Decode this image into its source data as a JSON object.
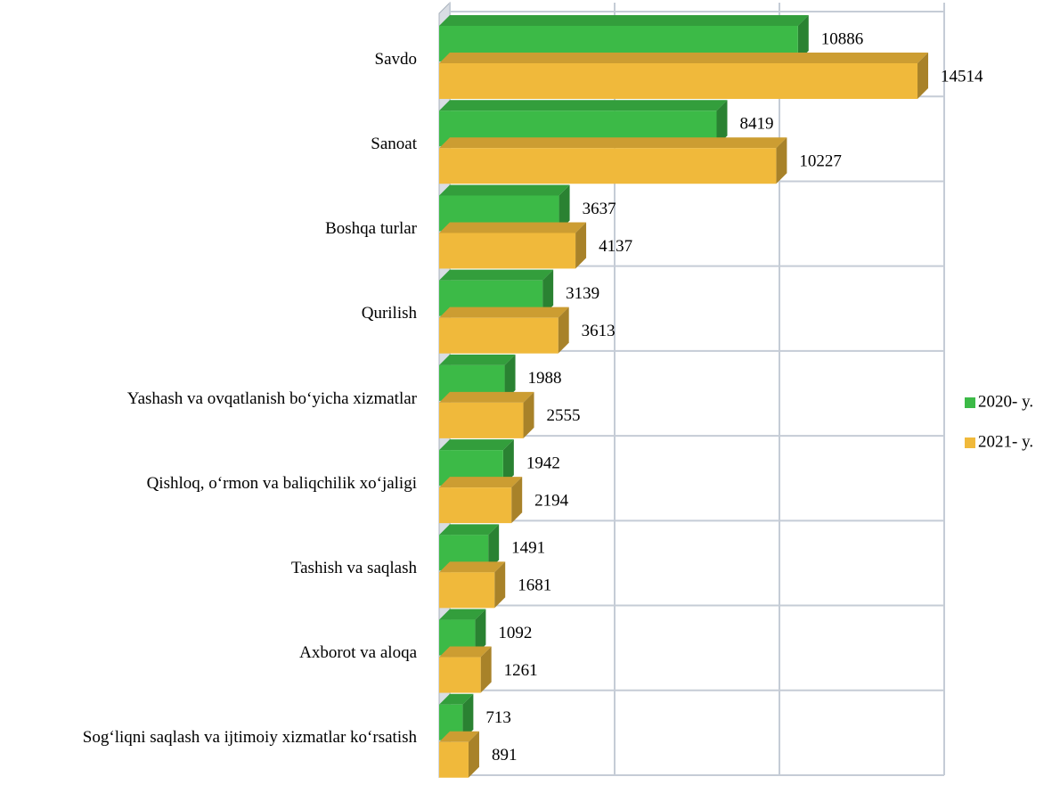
{
  "chart_data": {
    "type": "bar",
    "orientation": "horizontal",
    "categories": [
      "Savdo",
      "Sanoat",
      "Boshqa turlar",
      "Qurilish",
      "Yashash va ovqatlanish bo‘yicha xizmatlar",
      "Qishloq, o‘rmon va baliqchilik xo‘jaligi",
      "Tashish va saqlash",
      "Axborot va aloqa",
      "Sog‘liqni saqlash va ijtimoiy xizmatlar ko‘rsatish"
    ],
    "series": [
      {
        "name": "2020- y.",
        "color": "#3cba47",
        "values": [
          10886,
          8419,
          3637,
          3139,
          1988,
          1942,
          1491,
          1092,
          713
        ]
      },
      {
        "name": "2021- y.",
        "color": "#f0b93b",
        "values": [
          14514,
          10227,
          4137,
          3613,
          2555,
          2194,
          1681,
          1261,
          891
        ]
      }
    ],
    "xlim": [
      0,
      15000
    ],
    "xticks": [
      0,
      5000,
      10000,
      15000
    ],
    "grid": true,
    "legend": "right"
  }
}
